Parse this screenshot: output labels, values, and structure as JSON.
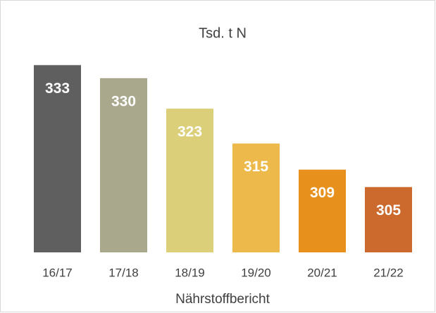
{
  "chart_data": {
    "type": "bar",
    "title": "Tsd. t N",
    "x_label": "Nährstoffbericht",
    "categories": [
      "16/17",
      "17/18",
      "18/19",
      "19/20",
      "20/21",
      "21/22"
    ],
    "values": [
      333,
      330,
      323,
      315,
      309,
      305
    ],
    "colors": [
      "#5f5f5f",
      "#a9a78c",
      "#dccf7a",
      "#ecb94a",
      "#e8901c",
      "#cc6a2e"
    ],
    "ylim": [
      290,
      335
    ],
    "grid": false
  }
}
